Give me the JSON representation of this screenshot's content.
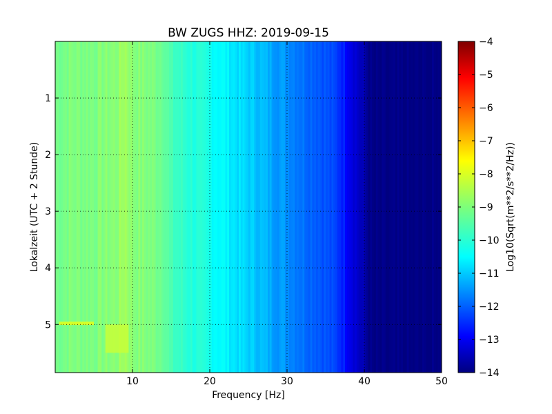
{
  "chart_data": {
    "type": "heatmap",
    "title": "BW ZUGS HHZ: 2019-09-15",
    "xlabel": "Frequency [Hz]",
    "ylabel": "Lokalzeit (UTC + 2 Stunde)",
    "xlim": [
      0,
      50
    ],
    "ylim": [
      5.85,
      0
    ],
    "x_ticks": [
      10,
      20,
      30,
      40,
      50
    ],
    "y_ticks": [
      1,
      2,
      3,
      4,
      5
    ],
    "grid": true,
    "colormap": "jet",
    "colorbar": {
      "label": "Log10(Sqrt(m**2/s**2/Hz))",
      "range": [
        -14,
        -4
      ],
      "ticks": [
        -4,
        -5,
        -6,
        -7,
        -8,
        -9,
        -10,
        -11,
        -12,
        -13,
        -14
      ]
    },
    "frequency_profile": {
      "frequency_hz": [
        0,
        2,
        5,
        8,
        9,
        10,
        12,
        14,
        15,
        18,
        20,
        22,
        24,
        26,
        28,
        30,
        32,
        34,
        36,
        37,
        38,
        39,
        40,
        41,
        45,
        50
      ],
      "log_psd": [
        -9.1,
        -9.0,
        -9.0,
        -8.9,
        -8.6,
        -8.9,
        -9.0,
        -9.1,
        -9.6,
        -9.9,
        -10.1,
        -10.3,
        -10.6,
        -10.8,
        -11.1,
        -11.3,
        -11.6,
        -11.8,
        -12.1,
        -12.3,
        -12.8,
        -13.2,
        -13.6,
        -14.0,
        -14.0,
        -14.0
      ]
    },
    "notable_features": [
      {
        "label": "high-amplitude band",
        "time_h": 4.98,
        "frequency_hz": [
          0.5,
          5
        ],
        "log_psd": -8.0
      },
      {
        "label": "high-amplitude patch",
        "time_h": [
          5.0,
          5.5
        ],
        "frequency_hz": [
          6.5,
          9.5
        ],
        "log_psd": -8.3
      }
    ]
  }
}
